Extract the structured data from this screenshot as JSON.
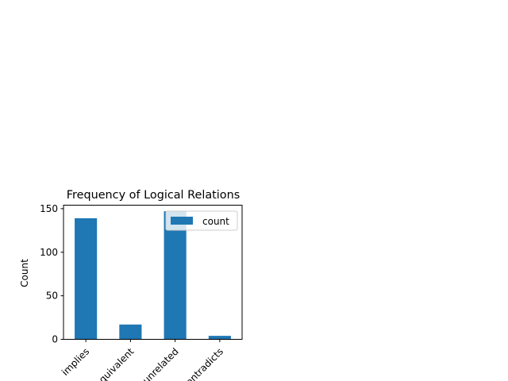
{
  "chart_data": {
    "type": "bar",
    "title": "Frequency of Logical Relations",
    "xlabel": "",
    "ylabel": "Count",
    "categories": [
      "implies",
      "equivalent",
      "unrelated",
      "contradicts"
    ],
    "series": [
      {
        "name": "count",
        "values": [
          139,
          17,
          147,
          4
        ],
        "color": "#1f77b4"
      }
    ],
    "ylim": [
      0,
      154
    ],
    "yticks": [
      0,
      50,
      100,
      150
    ],
    "grid": false,
    "legend": "upper right",
    "xtick_rotation": 45
  }
}
